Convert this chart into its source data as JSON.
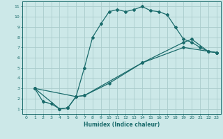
{
  "xlabel": "Humidex (Indice chaleur)",
  "bg_color": "#cce8e8",
  "grid_color": "#aacccc",
  "line_color": "#1a6b6b",
  "xlim": [
    -0.5,
    23.5
  ],
  "ylim": [
    0.5,
    11.5
  ],
  "xticks": [
    0,
    1,
    2,
    3,
    4,
    5,
    6,
    7,
    8,
    9,
    10,
    11,
    12,
    13,
    14,
    15,
    16,
    17,
    18,
    19,
    20,
    21,
    22,
    23
  ],
  "yticks": [
    1,
    2,
    3,
    4,
    5,
    6,
    7,
    8,
    9,
    10,
    11
  ],
  "lines": [
    {
      "x": [
        1,
        2,
        3,
        4,
        5,
        6,
        7,
        8,
        9,
        10,
        11,
        12,
        13,
        14,
        15,
        16,
        17,
        18,
        19,
        20,
        21,
        22,
        23
      ],
      "y": [
        3,
        1.7,
        1.5,
        1.0,
        1.1,
        2.2,
        5.0,
        8.0,
        9.3,
        10.5,
        10.7,
        10.5,
        10.7,
        11.0,
        10.6,
        10.5,
        10.2,
        9.0,
        7.8,
        7.5,
        7.0,
        6.6,
        6.5
      ]
    },
    {
      "x": [
        1,
        6,
        7,
        10,
        14,
        19,
        20,
        22,
        23
      ],
      "y": [
        3,
        2.2,
        2.3,
        3.5,
        5.5,
        7.5,
        7.8,
        6.6,
        6.5
      ]
    },
    {
      "x": [
        1,
        4,
        5,
        6,
        7,
        14,
        19,
        23
      ],
      "y": [
        3,
        1.0,
        1.1,
        2.2,
        2.3,
        5.5,
        7.0,
        6.5
      ]
    }
  ]
}
